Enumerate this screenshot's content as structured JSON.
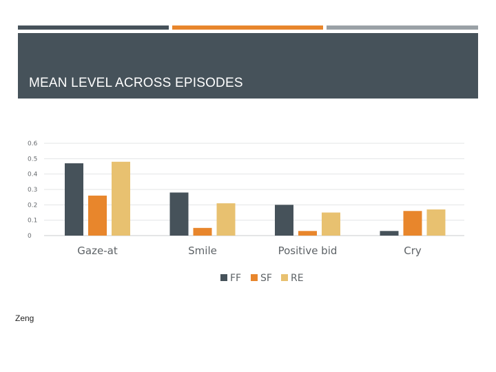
{
  "slide": {
    "title": "MEAN LEVEL ACROSS EPISODES",
    "footer": "Zeng"
  },
  "colors": {
    "dark": "#46525a",
    "accent": "#e8862c",
    "gray": "#9aa1a6"
  },
  "chart_data": {
    "type": "bar",
    "categories": [
      "Gaze-at",
      "Smile",
      "Positive bid",
      "Cry"
    ],
    "series": [
      {
        "name": "FF",
        "color": "#46525a",
        "values": [
          0.47,
          0.28,
          0.2,
          0.03
        ]
      },
      {
        "name": "SF",
        "color": "#e8862c",
        "values": [
          0.26,
          0.05,
          0.03,
          0.16
        ]
      },
      {
        "name": "RE",
        "color": "#e8c170",
        "values": [
          0.48,
          0.21,
          0.15,
          0.17
        ]
      }
    ],
    "yticks": [
      "0",
      "0.1",
      "0.2",
      "0.3",
      "0.4",
      "0.5",
      "0.6"
    ],
    "ylim": [
      0,
      0.6
    ],
    "grid": true,
    "legend": "bottom"
  }
}
